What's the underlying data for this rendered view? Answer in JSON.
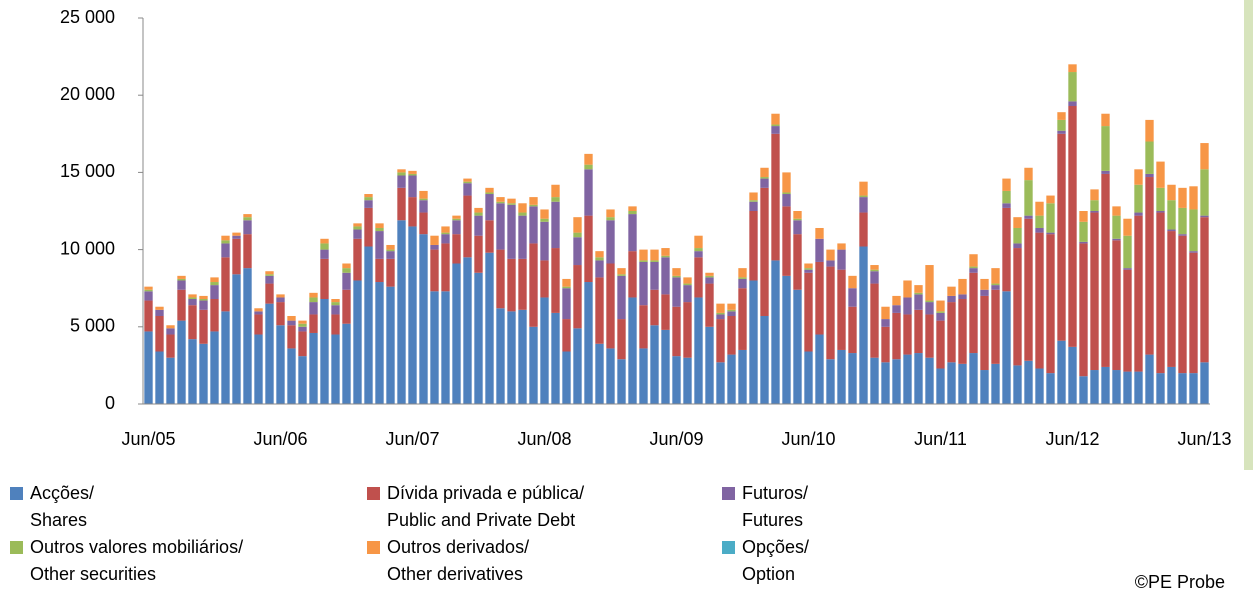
{
  "chart_data": {
    "type": "bar",
    "stacked": true,
    "categories": [
      "Jun/05",
      null,
      null,
      null,
      null,
      null,
      null,
      null,
      null,
      null,
      null,
      null,
      "Jun/06",
      null,
      null,
      null,
      null,
      null,
      null,
      null,
      null,
      null,
      null,
      null,
      "Jun/07",
      null,
      null,
      null,
      null,
      null,
      null,
      null,
      null,
      null,
      null,
      null,
      "Jun/08",
      null,
      null,
      null,
      null,
      null,
      null,
      null,
      null,
      null,
      null,
      null,
      "Jun/09",
      null,
      null,
      null,
      null,
      null,
      null,
      null,
      null,
      null,
      null,
      null,
      "Jun/10",
      null,
      null,
      null,
      null,
      null,
      null,
      null,
      null,
      null,
      null,
      null,
      "Jun/11",
      null,
      null,
      null,
      null,
      null,
      null,
      null,
      null,
      null,
      null,
      null,
      "Jun/12",
      null,
      null,
      null,
      null,
      null,
      null,
      null,
      null,
      null,
      null,
      null,
      "Jun/13"
    ],
    "series": [
      {
        "name": "Acções/\nShares",
        "color": "#4f81bd",
        "values": [
          4700,
          3400,
          3000,
          5400,
          4200,
          3900,
          4700,
          6000,
          8400,
          8800,
          4500,
          6500,
          5100,
          3600,
          3100,
          4600,
          6800,
          4500,
          5200,
          8000,
          10200,
          7900,
          7600,
          11900,
          11500,
          11000,
          7300,
          7300,
          9100,
          9500,
          8500,
          9800,
          6200,
          6000,
          6100,
          5000,
          6900,
          5900,
          3400,
          4900,
          7900,
          3900,
          3600,
          2900,
          6900,
          3600,
          5100,
          4800,
          3100,
          3000,
          6900,
          5000,
          2700,
          3200,
          3500,
          8000,
          5700,
          9300,
          8300,
          7400,
          3400,
          4500,
          2900,
          3500,
          3300,
          10200,
          3000,
          2700,
          2900,
          3200,
          3300,
          3000,
          2300,
          2700,
          2600,
          3300,
          2200,
          2600,
          7300,
          2500,
          2800,
          2300,
          2000,
          4100,
          3700,
          1800,
          2200,
          2400,
          2200,
          2100,
          2100,
          3200,
          2000,
          2400,
          2000,
          2000,
          2700
        ]
      },
      {
        "name": "Dívida privada e pública/\nPublic and Private Debt",
        "color": "#c0504d",
        "values": [
          2000,
          2300,
          1500,
          2000,
          2200,
          2200,
          2100,
          3500,
          2300,
          2200,
          1300,
          1300,
          1500,
          1500,
          1600,
          1200,
          2600,
          1300,
          2200,
          2700,
          2500,
          1500,
          1800,
          2100,
          1900,
          1400,
          2700,
          3100,
          1900,
          4000,
          2400,
          2100,
          3800,
          3400,
          3300,
          5400,
          2400,
          4200,
          2100,
          4100,
          4300,
          4300,
          5500,
          2600,
          3000,
          2800,
          2300,
          2300,
          3200,
          3600,
          2600,
          2800,
          2800,
          2500,
          4000,
          4500,
          8300,
          8200,
          4500,
          3600,
          5100,
          4700,
          6000,
          5200,
          3000,
          2200,
          4800,
          2300,
          3000,
          2600,
          2800,
          2800,
          3100,
          3900,
          4200,
          5200,
          4800,
          4800,
          5400,
          7600,
          9200,
          8800,
          9000,
          13400,
          15600,
          8600,
          10200,
          12500,
          8400,
          6600,
          10100,
          11500,
          10400,
          8800,
          8900,
          7800,
          9400
        ]
      },
      {
        "name": "Futuros/\nFutures",
        "color": "#8064a2",
        "values": [
          600,
          400,
          400,
          600,
          400,
          600,
          900,
          900,
          200,
          900,
          200,
          500,
          300,
          300,
          300,
          800,
          600,
          600,
          1100,
          600,
          500,
          1800,
          500,
          800,
          1400,
          800,
          300,
          600,
          900,
          800,
          1300,
          1700,
          3000,
          3500,
          2800,
          2400,
          2500,
          3000,
          2000,
          1800,
          3000,
          1100,
          2800,
          2800,
          2400,
          2800,
          1800,
          2400,
          1900,
          1100,
          400,
          400,
          300,
          300,
          600,
          600,
          600,
          500,
          800,
          900,
          200,
          1500,
          400,
          1300,
          1200,
          1000,
          800,
          500,
          500,
          1100,
          1000,
          800,
          500,
          400,
          300,
          300,
          400,
          300,
          300,
          300,
          200,
          300,
          100,
          200,
          300,
          100,
          100,
          200,
          100,
          100,
          200,
          200,
          100,
          100,
          100,
          100,
          100
        ]
      },
      {
        "name": "Outros valores mobiliários/\nOther securities",
        "color": "#9bbb59",
        "values": [
          100,
          0,
          0,
          100,
          100,
          100,
          200,
          200,
          0,
          200,
          0,
          100,
          0,
          0,
          200,
          300,
          400,
          200,
          300,
          200,
          200,
          200,
          100,
          200,
          100,
          100,
          0,
          100,
          100,
          100,
          200,
          100,
          100,
          100,
          200,
          100,
          200,
          300,
          100,
          300,
          300,
          200,
          200,
          100,
          200,
          100,
          100,
          100,
          100,
          100,
          200,
          100,
          100,
          100,
          100,
          100,
          100,
          100,
          100,
          100,
          100,
          0,
          0,
          0,
          0,
          100,
          100,
          0,
          0,
          0,
          100,
          100,
          100,
          0,
          0,
          100,
          0,
          100,
          800,
          1000,
          2300,
          800,
          1900,
          700,
          1900,
          1300,
          700,
          2900,
          1500,
          2100,
          1800,
          2100,
          1500,
          1900,
          1700,
          2700,
          3000
        ]
      },
      {
        "name": "Outros derivados/\nOther derivatives",
        "color": "#f79646",
        "values": [
          200,
          200,
          200,
          200,
          200,
          200,
          300,
          300,
          200,
          200,
          200,
          200,
          200,
          300,
          200,
          300,
          300,
          200,
          300,
          200,
          200,
          300,
          300,
          200,
          200,
          500,
          600,
          400,
          200,
          200,
          300,
          300,
          300,
          300,
          600,
          500,
          600,
          800,
          500,
          1000,
          700,
          400,
          500,
          400,
          300,
          700,
          700,
          500,
          500,
          400,
          800,
          200,
          600,
          400,
          600,
          500,
          600,
          700,
          1300,
          500,
          300,
          700,
          700,
          400,
          800,
          900,
          300,
          800,
          600,
          1100,
          500,
          2300,
          700,
          600,
          1000,
          800,
          700,
          1000,
          800,
          700,
          800,
          900,
          500,
          500,
          500,
          700,
          700,
          800,
          600,
          1100,
          1000,
          1400,
          1700,
          1000,
          1300,
          1500,
          1700
        ]
      },
      {
        "name": "Opções/\nOption",
        "color": "#4bacc6",
        "values": [
          0,
          0,
          0,
          0,
          0,
          0,
          0,
          0,
          0,
          0,
          0,
          0,
          0,
          0,
          0,
          0,
          0,
          0,
          0,
          0,
          0,
          0,
          0,
          0,
          0,
          0,
          0,
          0,
          0,
          0,
          0,
          0,
          0,
          0,
          0,
          0,
          0,
          0,
          0,
          0,
          0,
          0,
          0,
          0,
          0,
          0,
          0,
          0,
          0,
          0,
          0,
          0,
          0,
          0,
          0,
          0,
          0,
          0,
          0,
          0,
          0,
          0,
          0,
          0,
          0,
          0,
          0,
          0,
          0,
          0,
          0,
          0,
          0,
          0,
          0,
          0,
          0,
          0,
          0,
          0,
          0,
          0,
          0,
          0,
          0,
          0,
          0,
          0,
          0,
          0,
          0,
          0,
          0,
          0,
          0,
          0,
          0
        ]
      }
    ],
    "ylim": [
      0,
      25000
    ],
    "yticks": [
      0,
      {
        "value": 5000,
        "label": "5 000"
      },
      {
        "value": 10000,
        "label": "10 000"
      },
      {
        "value": 15000,
        "label": "15 000"
      },
      {
        "value": 20000,
        "label": "20 000"
      },
      {
        "value": 25000,
        "label": "25 000"
      }
    ],
    "legend": "bottom",
    "credit": "©PE Probe"
  }
}
